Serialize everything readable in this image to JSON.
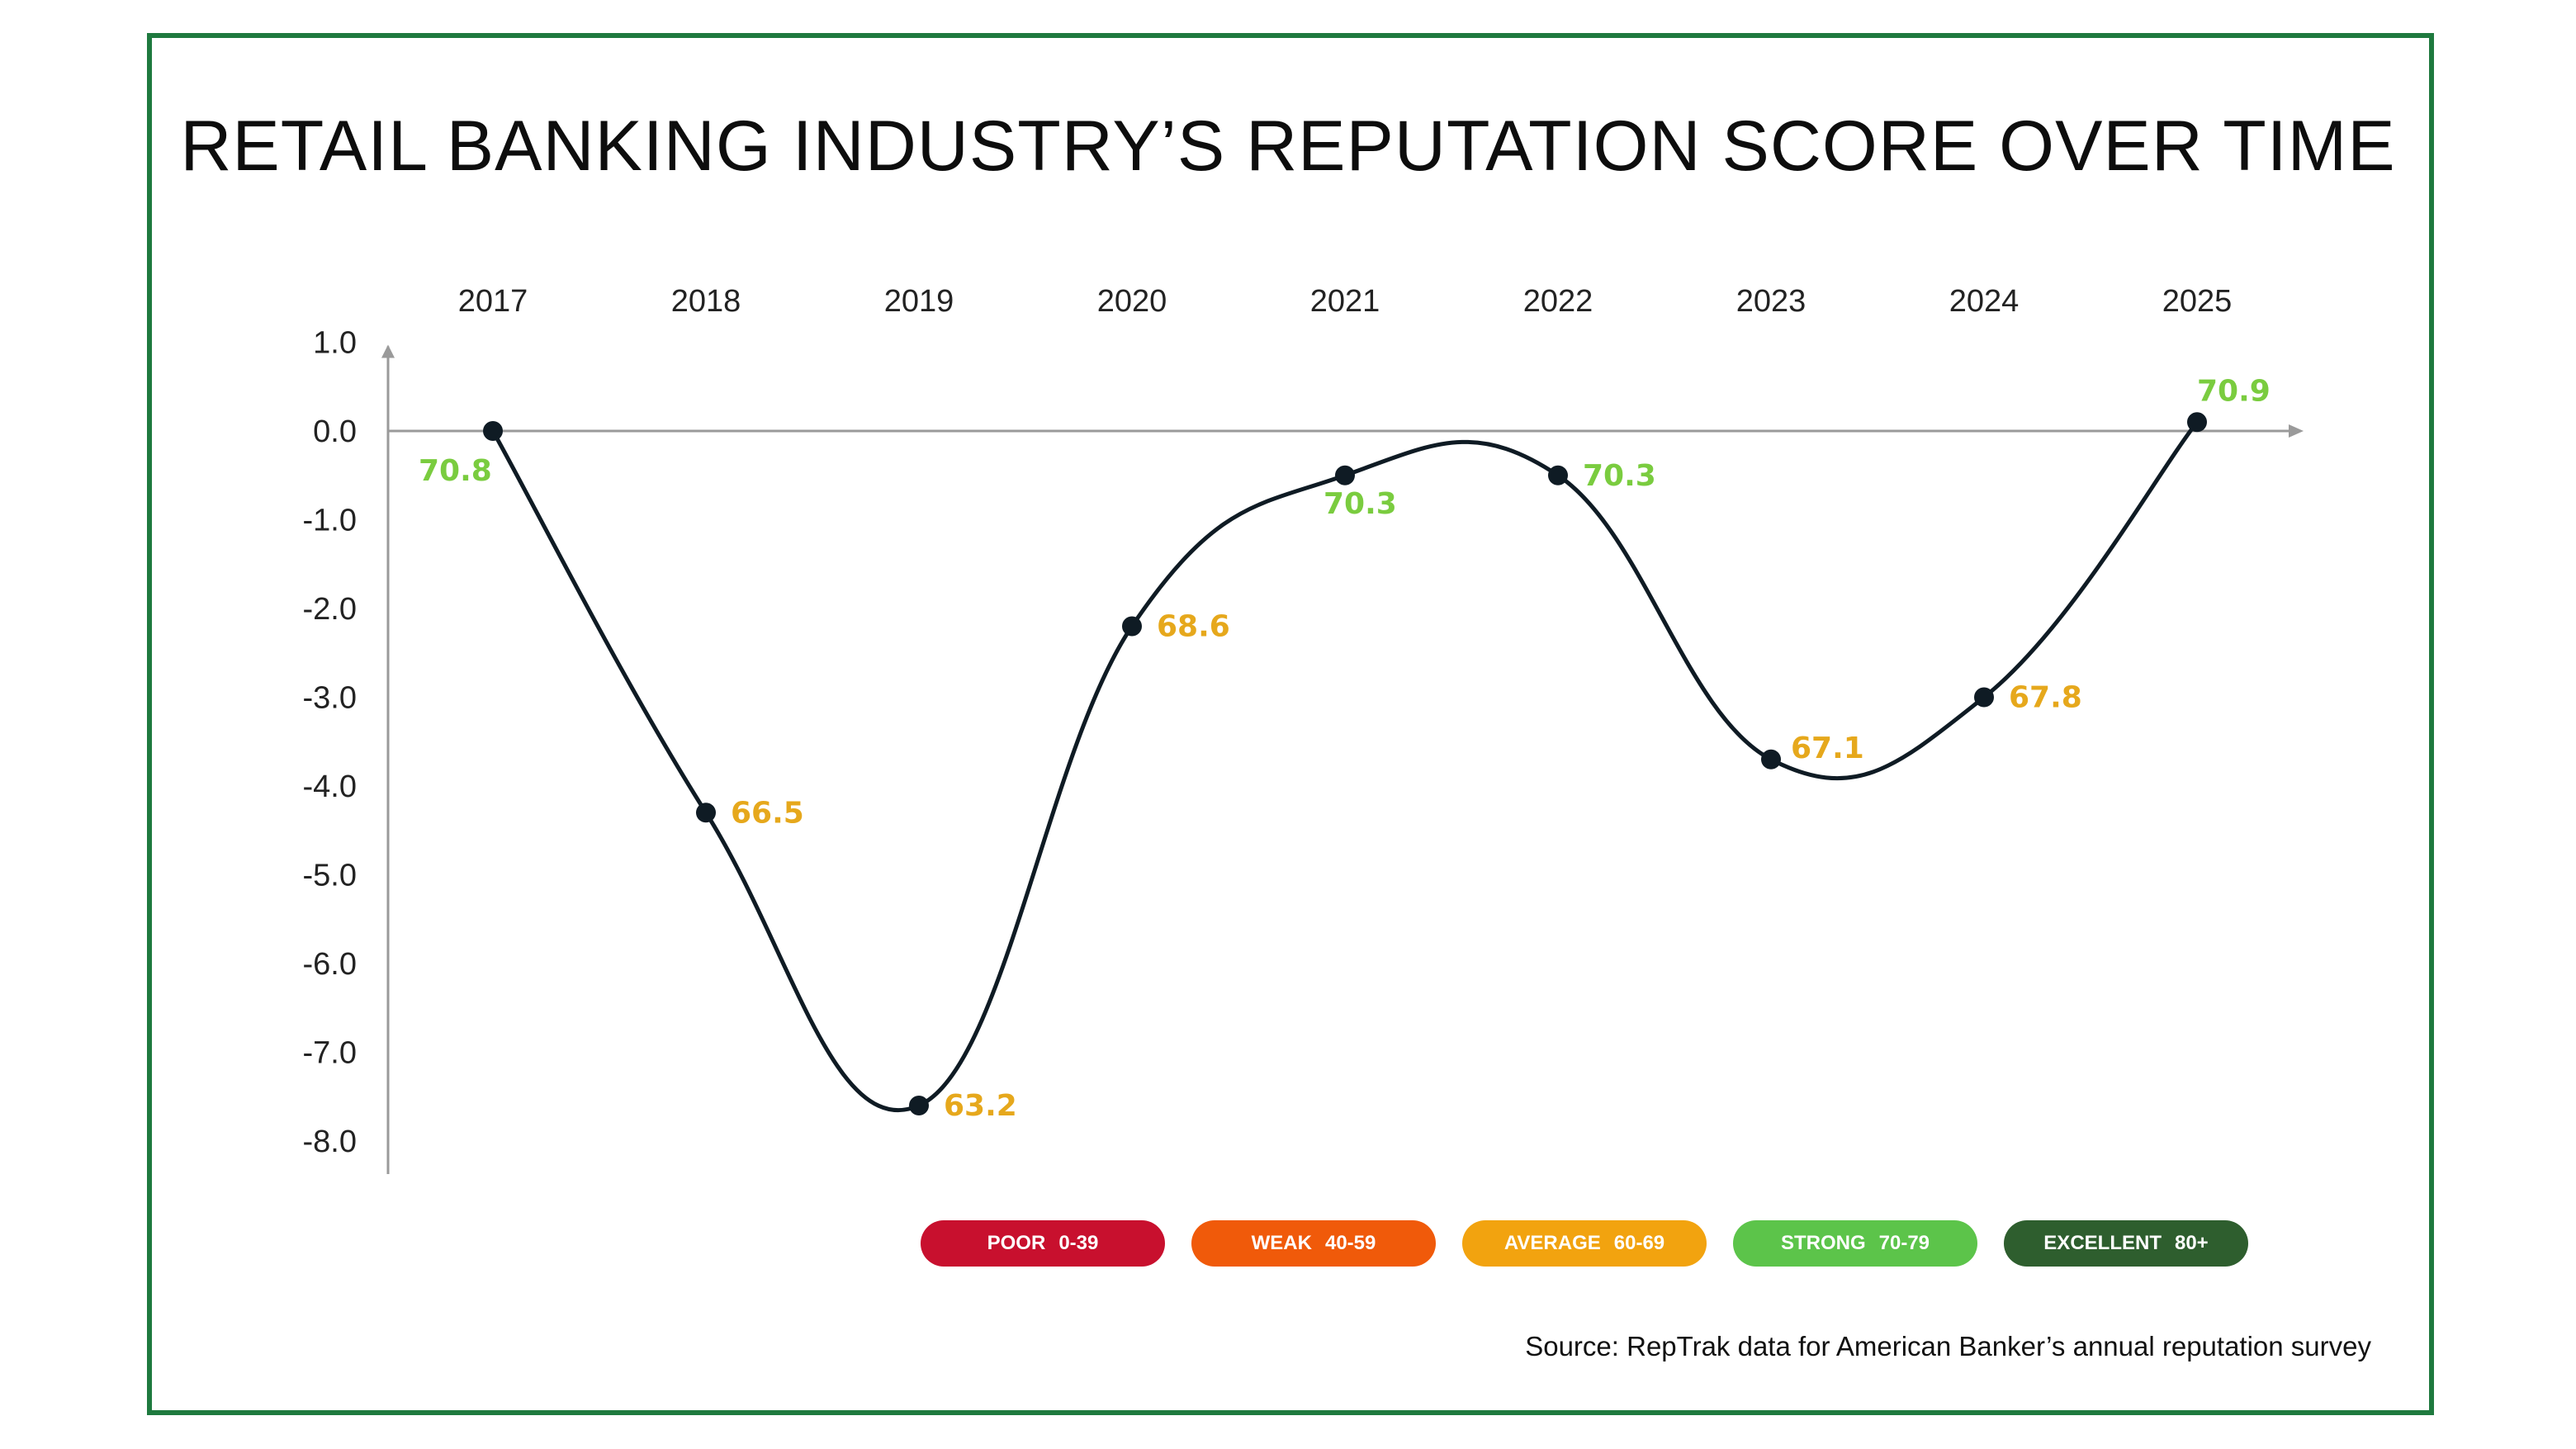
{
  "title": "RETAIL BANKING INDUSTRY’S REPUTATION SCORE OVER TIME",
  "source": "Source: RepTrak data for American Banker’s annual reputation survey",
  "colors": {
    "frame": "#1f7a3f",
    "line": "#0f1b24",
    "strong": "#7acc3f",
    "average": "#e6a81c"
  },
  "legend": [
    {
      "label": "POOR",
      "range": "0-39",
      "color": "#c8102e"
    },
    {
      "label": "WEAK",
      "range": "40-59",
      "color": "#f05a0a"
    },
    {
      "label": "AVERAGE",
      "range": "60-69",
      "color": "#f2a30f"
    },
    {
      "label": "STRONG",
      "range": "70-79",
      "color": "#5cc44a"
    },
    {
      "label": "EXCELLENT",
      "range": "80+",
      "color": "#2e5e2e"
    }
  ],
  "chart_data": {
    "type": "line",
    "categories": [
      "2017",
      "2018",
      "2019",
      "2020",
      "2021",
      "2022",
      "2023",
      "2024",
      "2025"
    ],
    "values": [
      0.0,
      -4.3,
      -7.6,
      -2.2,
      -0.5,
      -0.5,
      -3.7,
      -3.0,
      0.1
    ],
    "point_labels": [
      "70.8",
      "66.5",
      "63.2",
      "68.6",
      "70.3",
      "70.3",
      "67.1",
      "67.8",
      "70.9"
    ],
    "point_label_categories": [
      "strong",
      "average",
      "average",
      "average",
      "strong",
      "strong",
      "average",
      "average",
      "strong"
    ],
    "y_ticks": [
      "1.0",
      "0.0",
      "-1.0",
      "-2.0",
      "-3.0",
      "-4.0",
      "-5.0",
      "-6.0",
      "-7.0",
      "-8.0"
    ],
    "ylim": [
      -8,
      1
    ],
    "x_axis_position": "top",
    "smooth": true,
    "grid": false,
    "legend_position": "bottom"
  }
}
